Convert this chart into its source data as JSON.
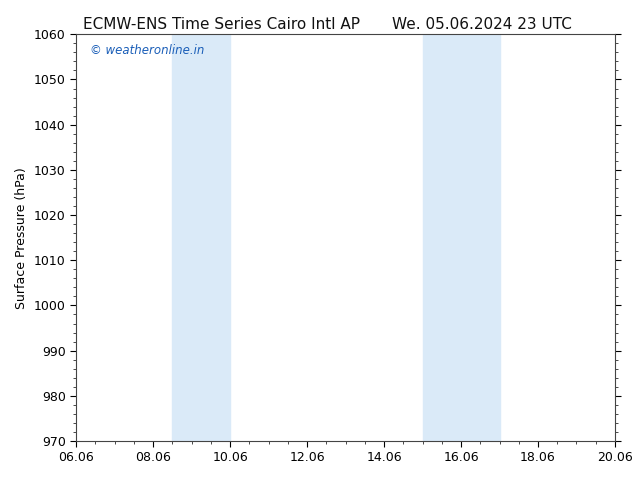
{
  "title_left": "ECMW-ENS Time Series Cairo Intl AP",
  "title_right": "We. 05.06.2024 23 UTC",
  "ylabel": "Surface Pressure (hPa)",
  "ylim": [
    970,
    1060
  ],
  "yticks": [
    970,
    980,
    990,
    1000,
    1010,
    1020,
    1030,
    1040,
    1050,
    1060
  ],
  "xlim_start": 0,
  "xlim_end": 14,
  "xtick_labels": [
    "06.06",
    "08.06",
    "10.06",
    "12.06",
    "14.06",
    "16.06",
    "18.06",
    "20.06"
  ],
  "xtick_positions": [
    0,
    2,
    4,
    6,
    8,
    10,
    12,
    14
  ],
  "shade_bands": [
    {
      "x_start": 2.5,
      "x_end": 4.0
    },
    {
      "x_start": 9.0,
      "x_end": 11.0
    }
  ],
  "shade_color": "#daeaf8",
  "background_color": "#ffffff",
  "watermark_text": "© weatheronline.in",
  "watermark_color": "#1a5eb8",
  "title_fontsize": 11,
  "axis_label_fontsize": 9,
  "tick_fontsize": 9,
  "minor_xtick_count": 4
}
